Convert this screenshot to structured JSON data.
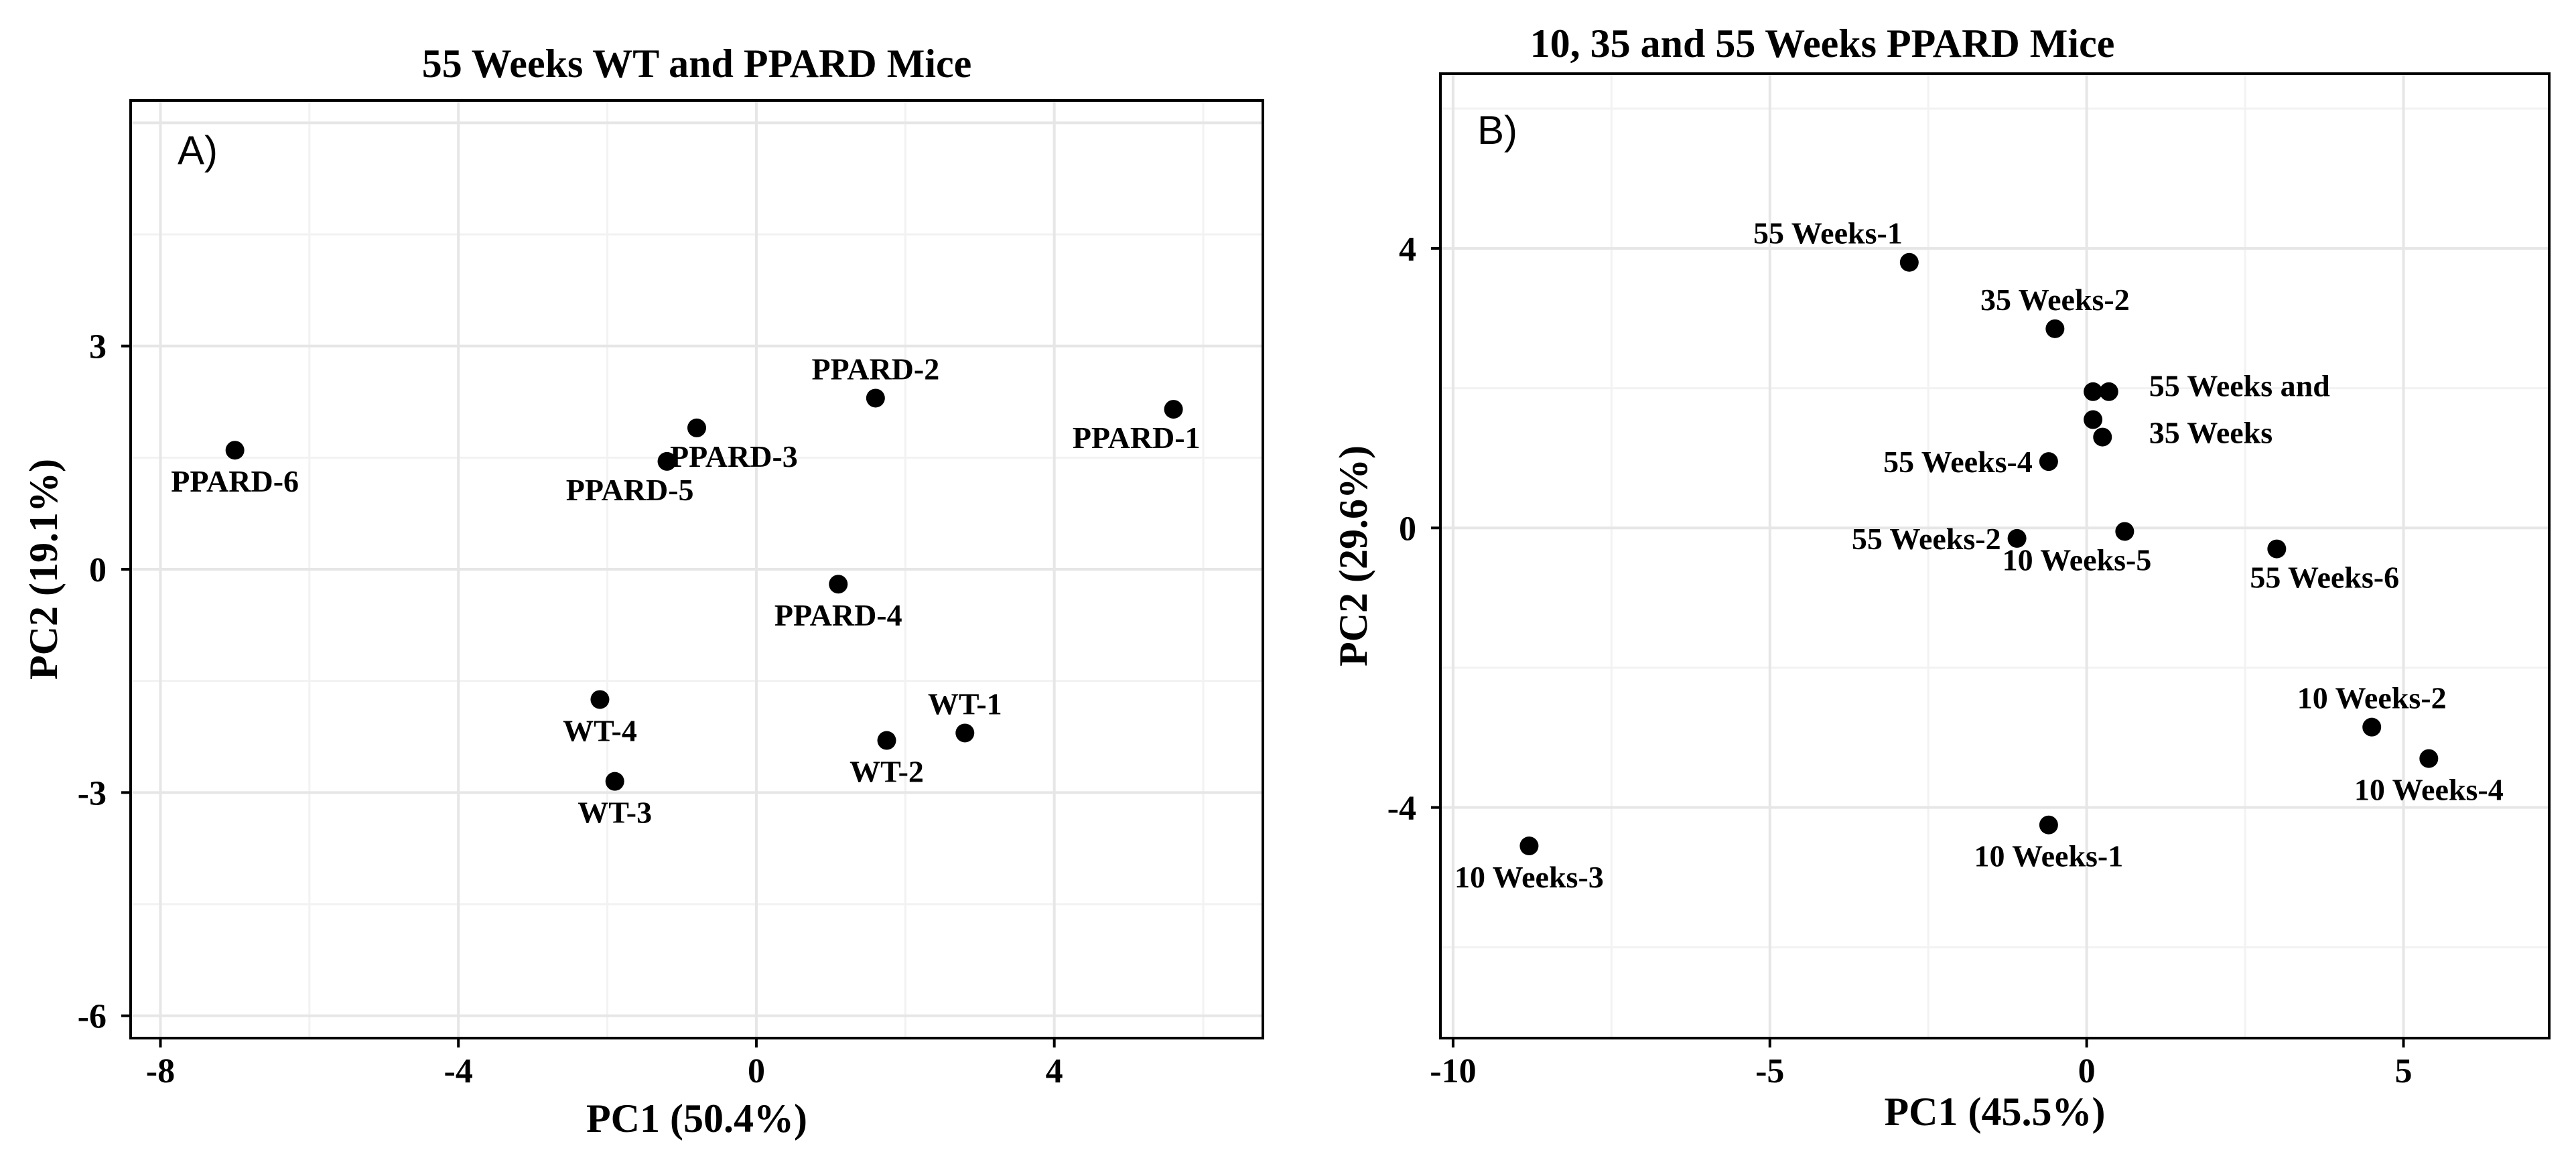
{
  "chart_data": [
    {
      "type": "scatter",
      "panel_tag": "A)",
      "title": "55 Weeks WT and PPARD Mice",
      "xlabel": "PC1 (50.4%)",
      "ylabel": "PC2 (19.1%)",
      "xlim": [
        -8.4,
        6.8
      ],
      "ylim": [
        -6.3,
        6.3
      ],
      "xticks": [
        -8,
        -4,
        0,
        4
      ],
      "xtick_labels": [
        "-8",
        "-4",
        "0",
        "4"
      ],
      "yticks": [
        -6,
        -3,
        0,
        3
      ],
      "ytick_labels": [
        "-6",
        "-3",
        "0",
        "3"
      ],
      "grid": true,
      "points": [
        {
          "label": "PPARD-1",
          "x": 5.6,
          "y": 2.15,
          "label_pos": "below-left"
        },
        {
          "label": "PPARD-2",
          "x": 1.6,
          "y": 2.3,
          "label_pos": "above"
        },
        {
          "label": "PPARD-3",
          "x": -0.8,
          "y": 1.9,
          "label_pos": "below-right"
        },
        {
          "label": "PPARD-4",
          "x": 1.1,
          "y": -0.2,
          "label_pos": "below"
        },
        {
          "label": "PPARD-5",
          "x": -1.2,
          "y": 1.45,
          "label_pos": "below-left"
        },
        {
          "label": "PPARD-6",
          "x": -7.0,
          "y": 1.6,
          "label_pos": "below"
        },
        {
          "label": "WT-1",
          "x": 2.8,
          "y": -2.2,
          "label_pos": "above"
        },
        {
          "label": "WT-2",
          "x": 1.75,
          "y": -2.3,
          "label_pos": "below"
        },
        {
          "label": "WT-3",
          "x": -1.9,
          "y": -2.85,
          "label_pos": "below"
        },
        {
          "label": "WT-4",
          "x": -2.1,
          "y": -1.75,
          "label_pos": "below"
        }
      ]
    },
    {
      "type": "scatter",
      "panel_tag": "B)",
      "title": "10, 35 and 55 Weeks PPARD Mice",
      "xlabel": "PC1 (45.5%)",
      "ylabel": "PC2 (29.6%)",
      "xlim": [
        -10.2,
        7.3
      ],
      "ylim": [
        -7.3,
        6.5
      ],
      "xticks": [
        -10,
        -5,
        0,
        5
      ],
      "xtick_labels": [
        "-10",
        "-5",
        "0",
        "5"
      ],
      "yticks": [
        -4,
        0,
        4
      ],
      "ytick_labels": [
        "-4",
        "0",
        "4"
      ],
      "grid": true,
      "points": [
        {
          "label": "55 Weeks-1",
          "x": -2.8,
          "y": 3.8,
          "label_pos": "above-left"
        },
        {
          "label": "35 Weeks-2",
          "x": -0.5,
          "y": 2.85,
          "label_pos": "above"
        },
        {
          "label": "55 Weeks-4",
          "x": -0.6,
          "y": 0.95,
          "label_pos": "left"
        },
        {
          "label": "55 Weeks-2",
          "x": -1.1,
          "y": -0.15,
          "label_pos": "left"
        },
        {
          "label": "10 Weeks-5",
          "x": 0.6,
          "y": -0.05,
          "label_pos": "below-left"
        },
        {
          "label": "55 Weeks-6",
          "x": 3.0,
          "y": -0.3,
          "label_pos": "below-right"
        },
        {
          "label": "10 Weeks-2",
          "x": 4.5,
          "y": -2.85,
          "label_pos": "above"
        },
        {
          "label": "10 Weeks-4",
          "x": 5.4,
          "y": -3.3,
          "label_pos": "below"
        },
        {
          "label": "10 Weeks-1",
          "x": -0.6,
          "y": -4.25,
          "label_pos": "below"
        },
        {
          "label": "10 Weeks-3",
          "x": -8.8,
          "y": -4.55,
          "label_pos": "below"
        },
        {
          "label": "",
          "x": 0.1,
          "y": 1.95,
          "label_pos": "none"
        },
        {
          "label": "",
          "x": 0.35,
          "y": 1.95,
          "label_pos": "none"
        },
        {
          "label": "",
          "x": 0.1,
          "y": 1.55,
          "label_pos": "none"
        },
        {
          "label": "",
          "x": 0.25,
          "y": 1.3,
          "label_pos": "none"
        }
      ],
      "group_label": {
        "text": "55 Weeks and\n35 Weeks",
        "x": 0.35,
        "y": 1.6
      }
    }
  ]
}
